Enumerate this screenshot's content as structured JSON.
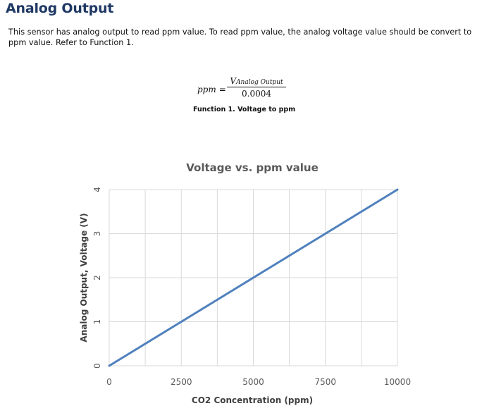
{
  "section": {
    "heading": "Analog Output",
    "description": "This sensor has analog output to read ppm value. To read ppm value, the analog voltage value should be convert to ppm value. Refer to Function 1."
  },
  "formula": {
    "lhs": "ppm",
    "equals": "=",
    "numerator_symbol": "V",
    "numerator_subscript": "Analog Output",
    "denominator": "0.0004",
    "caption": "Function 1. Voltage to ppm"
  },
  "chart_data": {
    "type": "line",
    "title": "Voltage vs. ppm value",
    "xlabel": "CO2 Concentration (ppm)",
    "ylabel": "Analog Output, Voltage (V)",
    "xlim": [
      0,
      10000
    ],
    "ylim": [
      0,
      4
    ],
    "x_ticks": [
      0,
      2500,
      5000,
      7500,
      10000
    ],
    "y_ticks": [
      0,
      1,
      2,
      3,
      4
    ],
    "x_tick_labels": [
      "0",
      "2500",
      "5000",
      "7500",
      "10000"
    ],
    "y_tick_labels": [
      "0",
      "1",
      "2",
      "3",
      "4"
    ],
    "grid": true,
    "legend": "none",
    "series": [
      {
        "x": [
          0,
          10000
        ],
        "y": [
          0,
          4
        ],
        "color": "#4f81bd"
      }
    ]
  }
}
